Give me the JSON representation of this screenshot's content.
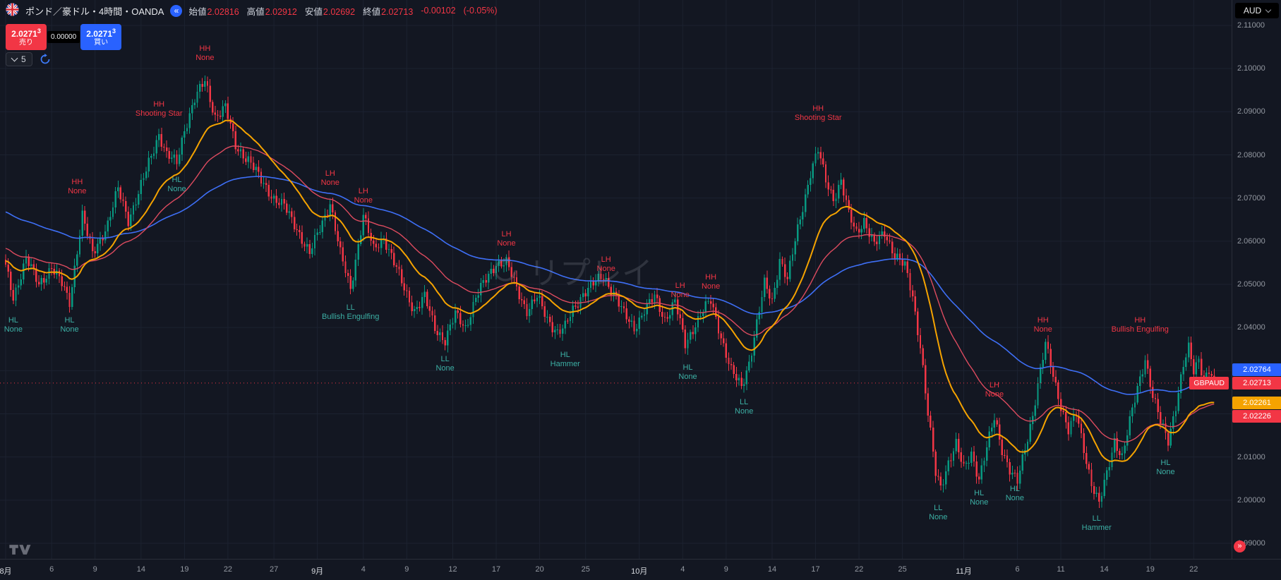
{
  "header": {
    "symbol_title": "ポンド／豪ドル・4時間・OANDA",
    "ohlc": {
      "open_label": "始値",
      "open": "2.02816",
      "high_label": "高値",
      "high": "2.02912",
      "low_label": "安値",
      "low": "2.02692",
      "close_label": "終値",
      "close": "2.02713",
      "change": "-0.00102",
      "change_pct": "(-0.05%)"
    },
    "currency_button": "AUD"
  },
  "icons": {
    "collapse": "«",
    "jump": "»"
  },
  "trade_panel": {
    "sell_price_main": "2.0271",
    "sell_price_sup": "3",
    "sell_label": "売り",
    "spread": "0.00000",
    "buy_price_main": "2.0271",
    "buy_price_sup": "3",
    "buy_label": "買い",
    "bar_replay_count": "5"
  },
  "watermark": {
    "text": "リプレイ"
  },
  "price_axis": {
    "ticks": [
      "2.11000",
      "2.10000",
      "2.09000",
      "2.08000",
      "2.07000",
      "2.06000",
      "2.05000",
      "2.04000",
      "2.03000",
      "2.02000",
      "2.01000",
      "2.00000",
      "1.99000"
    ],
    "labels": [
      {
        "name": "ma-slow",
        "value": "2.02764",
        "price": 2.02764,
        "color": "#2962ff"
      },
      {
        "name": "last-price",
        "value": "2.02713",
        "price": 2.02713,
        "color": "#f23645",
        "tag": "GBPAUD",
        "anchor": true
      },
      {
        "name": "ma-fast",
        "value": "2.02261",
        "price": 2.02261,
        "color": "#f5a300"
      },
      {
        "name": "ma-mid",
        "value": "2.02226",
        "price": 2.02226,
        "color": "#f23645"
      }
    ]
  },
  "time_axis": {
    "labels": [
      {
        "text": "8月",
        "i": 0,
        "major": true
      },
      {
        "text": "6",
        "i": 18
      },
      {
        "text": "9",
        "i": 35
      },
      {
        "text": "14",
        "i": 53
      },
      {
        "text": "19",
        "i": 70
      },
      {
        "text": "22",
        "i": 87
      },
      {
        "text": "27",
        "i": 105
      },
      {
        "text": "9月",
        "i": 122,
        "major": true
      },
      {
        "text": "4",
        "i": 140
      },
      {
        "text": "9",
        "i": 157
      },
      {
        "text": "12",
        "i": 175
      },
      {
        "text": "17",
        "i": 192
      },
      {
        "text": "20",
        "i": 209
      },
      {
        "text": "25",
        "i": 227
      },
      {
        "text": "10月",
        "i": 248,
        "major": true
      },
      {
        "text": "4",
        "i": 265
      },
      {
        "text": "9",
        "i": 282
      },
      {
        "text": "14",
        "i": 300
      },
      {
        "text": "17",
        "i": 317
      },
      {
        "text": "22",
        "i": 334
      },
      {
        "text": "25",
        "i": 351
      },
      {
        "text": "11月",
        "i": 375,
        "major": true
      },
      {
        "text": "6",
        "i": 396
      },
      {
        "text": "11",
        "i": 413
      },
      {
        "text": "14",
        "i": 430
      },
      {
        "text": "19",
        "i": 448
      },
      {
        "text": "22",
        "i": 465
      }
    ]
  },
  "chart_data": {
    "type": "candlestick",
    "symbol": "GBPAUD",
    "timeframe": "4時間",
    "source": "OANDA",
    "price_range": [
      1.99,
      2.11
    ],
    "grid": true,
    "n_candles": 474,
    "last_price": 2.02713,
    "up_color": "#089981",
    "down_color": "#f23645",
    "grid_color": "#1c2230",
    "pivot_high_color": "#f23645",
    "pivot_low_color": "#3cb0a5",
    "close_anchors": [
      [
        0,
        2.054
      ],
      [
        3,
        2.047
      ],
      [
        8,
        2.056
      ],
      [
        13,
        2.05
      ],
      [
        18,
        2.054
      ],
      [
        22,
        2.05
      ],
      [
        25,
        2.046
      ],
      [
        30,
        2.066
      ],
      [
        34,
        2.057
      ],
      [
        40,
        2.064
      ],
      [
        44,
        2.072
      ],
      [
        48,
        2.065
      ],
      [
        52,
        2.071
      ],
      [
        56,
        2.078
      ],
      [
        60,
        2.085
      ],
      [
        63,
        2.08
      ],
      [
        67,
        2.078
      ],
      [
        70,
        2.086
      ],
      [
        74,
        2.093
      ],
      [
        78,
        2.097
      ],
      [
        82,
        2.089
      ],
      [
        86,
        2.091
      ],
      [
        90,
        2.082
      ],
      [
        95,
        2.079
      ],
      [
        100,
        2.074
      ],
      [
        105,
        2.07
      ],
      [
        109,
        2.068
      ],
      [
        114,
        2.063
      ],
      [
        119,
        2.057
      ],
      [
        123,
        2.063
      ],
      [
        127,
        2.069
      ],
      [
        131,
        2.057
      ],
      [
        135,
        2.049
      ],
      [
        140,
        2.066
      ],
      [
        144,
        2.058
      ],
      [
        148,
        2.061
      ],
      [
        152,
        2.055
      ],
      [
        156,
        2.049
      ],
      [
        160,
        2.044
      ],
      [
        164,
        2.047
      ],
      [
        168,
        2.04
      ],
      [
        172,
        2.037
      ],
      [
        176,
        2.043
      ],
      [
        180,
        2.04
      ],
      [
        184,
        2.047
      ],
      [
        188,
        2.051
      ],
      [
        192,
        2.055
      ],
      [
        196,
        2.055
      ],
      [
        200,
        2.049
      ],
      [
        204,
        2.044
      ],
      [
        208,
        2.047
      ],
      [
        212,
        2.042
      ],
      [
        216,
        2.039
      ],
      [
        219,
        2.04
      ],
      [
        222,
        2.044
      ],
      [
        226,
        2.048
      ],
      [
        230,
        2.05
      ],
      [
        234,
        2.052
      ],
      [
        238,
        2.048
      ],
      [
        242,
        2.043
      ],
      [
        246,
        2.04
      ],
      [
        250,
        2.044
      ],
      [
        254,
        2.047
      ],
      [
        258,
        2.042
      ],
      [
        262,
        2.046
      ],
      [
        266,
        2.036
      ],
      [
        270,
        2.041
      ],
      [
        273,
        2.044
      ],
      [
        276,
        2.046
      ],
      [
        280,
        2.038
      ],
      [
        284,
        2.03
      ],
      [
        288,
        2.026
      ],
      [
        291,
        2.032
      ],
      [
        294,
        2.041
      ],
      [
        297,
        2.05
      ],
      [
        300,
        2.046
      ],
      [
        303,
        2.056
      ],
      [
        306,
        2.051
      ],
      [
        309,
        2.06
      ],
      [
        312,
        2.068
      ],
      [
        315,
        2.076
      ],
      [
        318,
        2.081
      ],
      [
        321,
        2.074
      ],
      [
        324,
        2.07
      ],
      [
        327,
        2.074
      ],
      [
        330,
        2.066
      ],
      [
        333,
        2.062
      ],
      [
        336,
        2.065
      ],
      [
        340,
        2.059
      ],
      [
        344,
        2.062
      ],
      [
        348,
        2.057
      ],
      [
        352,
        2.054
      ],
      [
        355,
        2.047
      ],
      [
        358,
        2.036
      ],
      [
        361,
        2.02
      ],
      [
        364,
        2.006
      ],
      [
        366,
        2.003
      ],
      [
        369,
        2.009
      ],
      [
        372,
        2.013
      ],
      [
        375,
        2.007
      ],
      [
        378,
        2.011
      ],
      [
        381,
        2.005
      ],
      [
        384,
        2.012
      ],
      [
        387,
        2.019
      ],
      [
        390,
        2.012
      ],
      [
        393,
        2.007
      ],
      [
        396,
        2.004
      ],
      [
        399,
        2.012
      ],
      [
        402,
        2.02
      ],
      [
        405,
        2.03
      ],
      [
        407,
        2.036
      ],
      [
        410,
        2.029
      ],
      [
        413,
        2.022
      ],
      [
        416,
        2.016
      ],
      [
        419,
        2.02
      ],
      [
        422,
        2.012
      ],
      [
        425,
        2.004
      ],
      [
        428,
        1.999
      ],
      [
        431,
        2.006
      ],
      [
        434,
        2.014
      ],
      [
        437,
        2.01
      ],
      [
        440,
        2.018
      ],
      [
        443,
        2.026
      ],
      [
        446,
        2.033
      ],
      [
        449,
        2.024
      ],
      [
        452,
        2.018
      ],
      [
        455,
        2.014
      ],
      [
        458,
        2.022
      ],
      [
        461,
        2.031
      ],
      [
        463,
        2.035
      ],
      [
        465,
        2.03
      ],
      [
        467,
        2.033
      ],
      [
        469,
        2.028
      ],
      [
        471,
        2.03
      ],
      [
        473,
        2.027
      ]
    ],
    "moving_averages": [
      {
        "name": "slow",
        "period": 110,
        "init": 2.067,
        "last": 2.02764,
        "color": "#3e6ff6",
        "width": 1.6
      },
      {
        "name": "mid",
        "period": 48,
        "init": 2.0585,
        "last": 2.02226,
        "color": "#dd4b5f",
        "width": 1.4
      },
      {
        "name": "fast",
        "period": 24,
        "init": 2.0555,
        "last": 2.02261,
        "color": "#f5a300",
        "width": 2
      }
    ],
    "annotations": [
      {
        "i": 3,
        "price": 2.0405,
        "l1": "HL",
        "l2": "None",
        "cls": "low"
      },
      {
        "i": 25,
        "price": 2.0405,
        "l1": "HL",
        "l2": "None",
        "cls": "low"
      },
      {
        "i": 28,
        "price": 2.0725,
        "l1": "HH",
        "l2": "None",
        "cls": "high"
      },
      {
        "i": 60,
        "price": 2.0905,
        "l1": "HH",
        "l2": "Shooting Star",
        "cls": "high"
      },
      {
        "i": 67,
        "price": 2.073,
        "l1": "HL",
        "l2": "None",
        "cls": "low"
      },
      {
        "i": 78,
        "price": 2.1035,
        "l1": "HH",
        "l2": "None",
        "cls": "high"
      },
      {
        "i": 127,
        "price": 2.0745,
        "l1": "LH",
        "l2": "None",
        "cls": "high"
      },
      {
        "i": 135,
        "price": 2.0435,
        "l1": "LL",
        "l2": "Bullish Engulfing",
        "cls": "low"
      },
      {
        "i": 140,
        "price": 2.0705,
        "l1": "LH",
        "l2": "None",
        "cls": "high"
      },
      {
        "i": 172,
        "price": 2.0315,
        "l1": "LL",
        "l2": "None",
        "cls": "low"
      },
      {
        "i": 196,
        "price": 2.0605,
        "l1": "LH",
        "l2": "None",
        "cls": "high"
      },
      {
        "i": 219,
        "price": 2.0325,
        "l1": "HL",
        "l2": "Hammer",
        "cls": "low"
      },
      {
        "i": 235,
        "price": 2.0545,
        "l1": "LH",
        "l2": "None",
        "cls": "high"
      },
      {
        "i": 264,
        "price": 2.0485,
        "l1": "LH",
        "l2": "None",
        "cls": "high"
      },
      {
        "i": 267,
        "price": 2.0295,
        "l1": "HL",
        "l2": "None",
        "cls": "low"
      },
      {
        "i": 276,
        "price": 2.0505,
        "l1": "HH",
        "l2": "None",
        "cls": "high"
      },
      {
        "i": 289,
        "price": 2.0215,
        "l1": "LL",
        "l2": "None",
        "cls": "low"
      },
      {
        "i": 318,
        "price": 2.0895,
        "l1": "HH",
        "l2": "Shooting Star",
        "cls": "high"
      },
      {
        "i": 365,
        "price": 1.997,
        "l1": "LL",
        "l2": "None",
        "cls": "low"
      },
      {
        "i": 381,
        "price": 2.0005,
        "l1": "HL",
        "l2": "None",
        "cls": "low"
      },
      {
        "i": 387,
        "price": 2.0255,
        "l1": "LH",
        "l2": "None",
        "cls": "high"
      },
      {
        "i": 395,
        "price": 2.0015,
        "l1": "HL",
        "l2": "None",
        "cls": "low"
      },
      {
        "i": 406,
        "price": 2.0405,
        "l1": "HH",
        "l2": "None",
        "cls": "high"
      },
      {
        "i": 427,
        "price": 1.9945,
        "l1": "LL",
        "l2": "Hammer",
        "cls": "low"
      },
      {
        "i": 444,
        "price": 2.0405,
        "l1": "HH",
        "l2": "Bullish Engulfing",
        "cls": "high"
      },
      {
        "i": 454,
        "price": 2.0075,
        "l1": "HL",
        "l2": "None",
        "cls": "low"
      }
    ]
  }
}
